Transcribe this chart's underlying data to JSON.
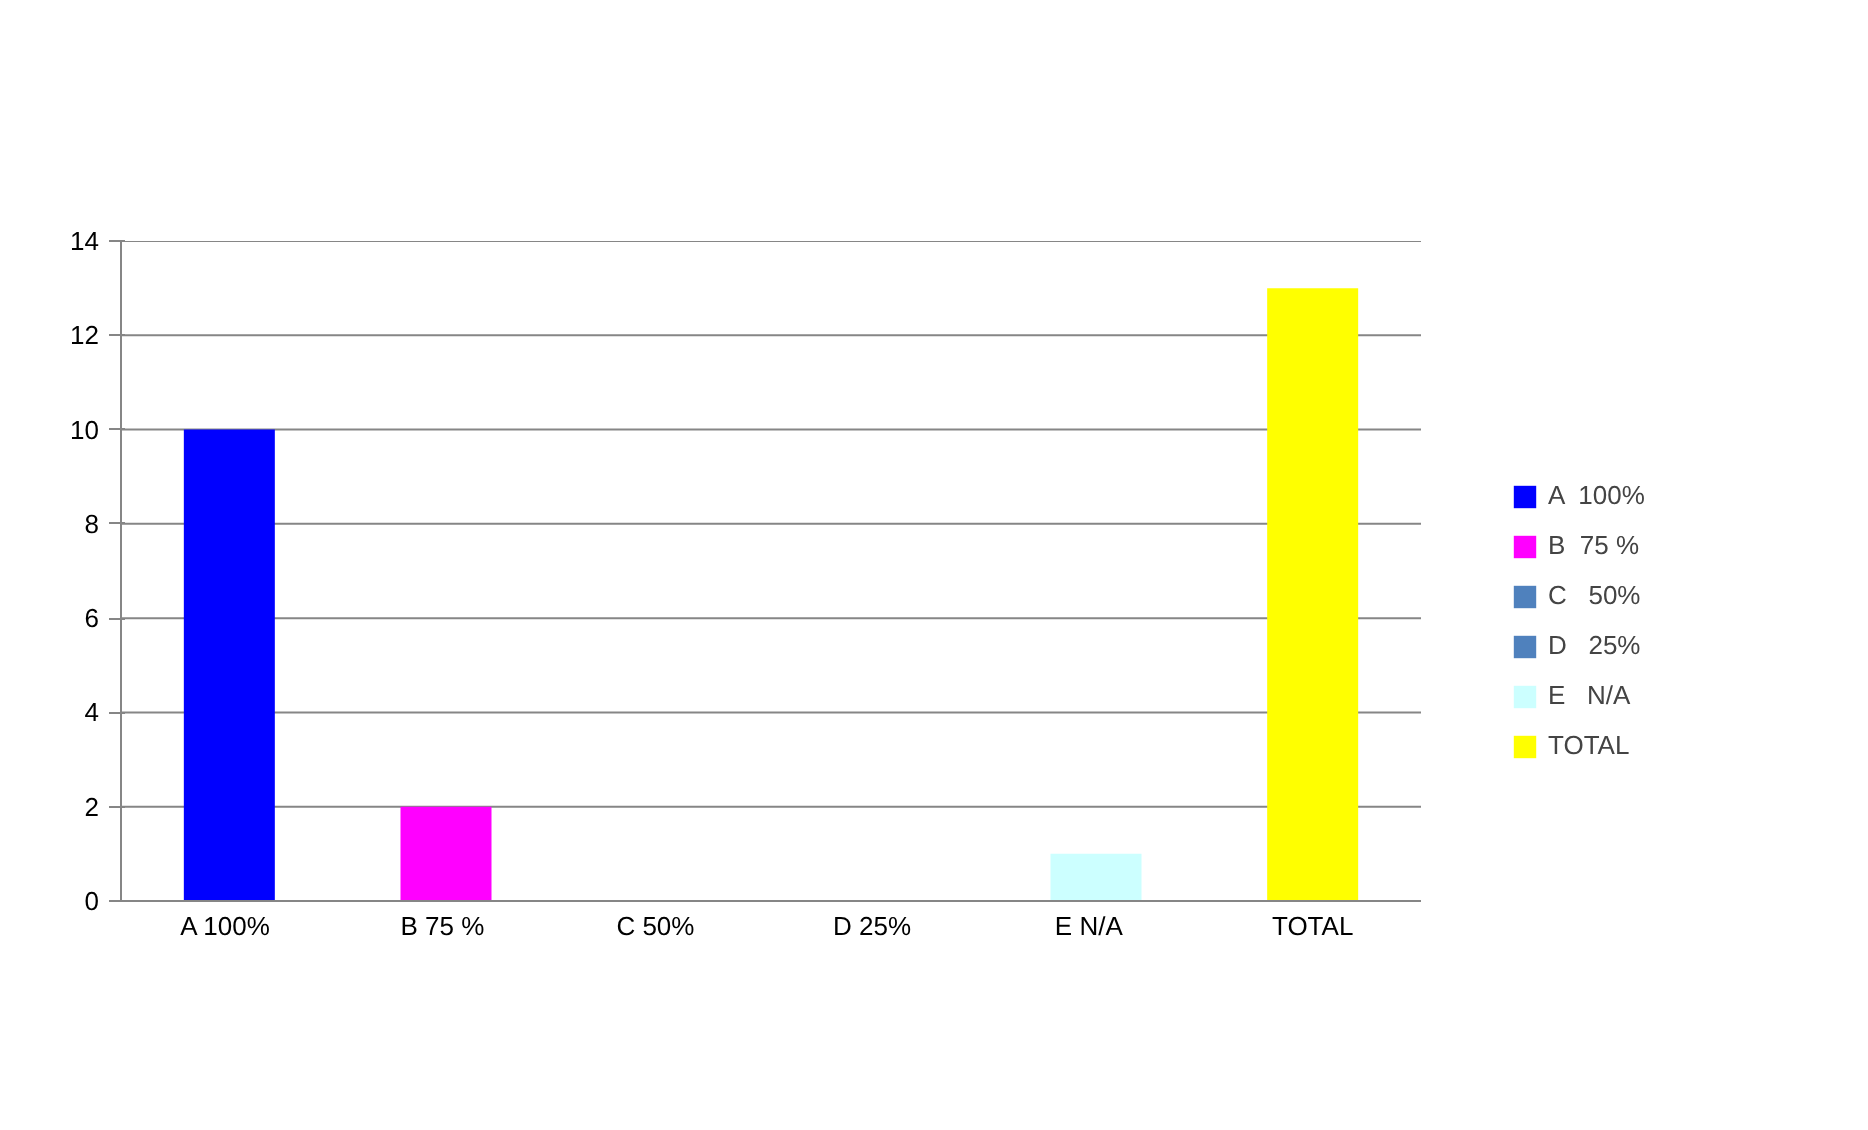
{
  "chart_data": {
    "type": "bar",
    "categories": [
      "A  100%",
      "B  75 %",
      "C   50%",
      "D   25%",
      "E   N/A",
      "TOTAL"
    ],
    "series": [
      {
        "name": "A  100%",
        "color": "#0000ff",
        "values": [
          10,
          null,
          null,
          null,
          null,
          null
        ]
      },
      {
        "name": "B  75 %",
        "color": "#ff00ff",
        "values": [
          null,
          2,
          null,
          null,
          null,
          null
        ]
      },
      {
        "name": "C   50%",
        "color": "#4f81bd",
        "values": [
          null,
          null,
          0,
          null,
          null,
          null
        ]
      },
      {
        "name": "D   25%",
        "color": "#4f81bd",
        "values": [
          null,
          null,
          null,
          0,
          null,
          null
        ]
      },
      {
        "name": "E   N/A",
        "color": "#ccffff",
        "values": [
          null,
          null,
          null,
          null,
          1,
          null
        ]
      },
      {
        "name": "TOTAL",
        "color": "#ffff00",
        "values": [
          null,
          null,
          null,
          null,
          null,
          13
        ]
      }
    ],
    "ylim": [
      0,
      14
    ],
    "yticks": [
      0,
      2,
      4,
      6,
      8,
      10,
      12,
      14
    ],
    "grid": "y",
    "legend": "right"
  }
}
